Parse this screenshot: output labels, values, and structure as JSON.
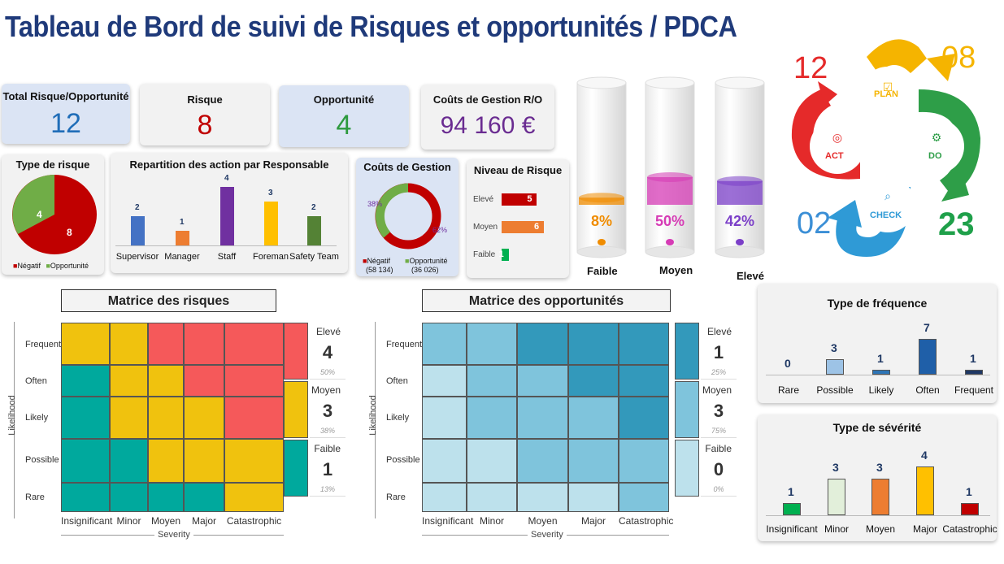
{
  "title": "Tableau de Bord de suivi de Risques et opportunités / PDCA",
  "kpis": {
    "total": {
      "label": "Total Risque/Opportunité",
      "value": "12",
      "color": "#1f6db8"
    },
    "risque": {
      "label": "Risque",
      "value": "8",
      "color": "#c00000"
    },
    "opportunite": {
      "label": "Opportunité",
      "value": "4",
      "color": "#2e9a3e"
    },
    "couts": {
      "label": "Coûts de Gestion R/O",
      "value": "94 160 €",
      "color": "#6a2c91"
    }
  },
  "type_risque": {
    "title": "Type de risque",
    "values": [
      {
        "name": "Négatif",
        "value": 8,
        "color": "#c00000"
      },
      {
        "name": "Opportunité",
        "value": 4,
        "color": "#70ad47"
      }
    ]
  },
  "repartition": {
    "title": "Repartition des action par Responsable",
    "categories": [
      "Supervisor",
      "Manager",
      "Staff",
      "Foreman",
      "Safety Team"
    ],
    "values": [
      2,
      1,
      4,
      3,
      2
    ],
    "colors": [
      "#4472c4",
      "#ed7d31",
      "#7030a0",
      "#ffc000",
      "#548235"
    ]
  },
  "couts_gestion": {
    "title": "Coûts de Gestion",
    "values": [
      {
        "name": "Négatif",
        "amount": "(58 134)",
        "pct": "62%",
        "color": "#c00000",
        "share": 0.62
      },
      {
        "name": "Opportunité",
        "amount": "(36 026)",
        "pct": "38%",
        "color": "#70ad47",
        "share": 0.38
      }
    ]
  },
  "niveau": {
    "title": "Niveau de Risque",
    "rows": [
      {
        "name": "Elevé",
        "value": "5",
        "color": "#c00000",
        "v": 5
      },
      {
        "name": "Moyen",
        "value": "6",
        "color": "#ed7d31",
        "v": 6
      },
      {
        "name": "Faible",
        "value": "1",
        "color": "#00b050",
        "v": 1
      }
    ]
  },
  "cylinders": [
    {
      "pct": "8%",
      "label": "Faible",
      "color": "#f08c00",
      "level": 0.08
    },
    {
      "pct": "50%",
      "label": "Moyen",
      "color": "#d63bb5",
      "level": 0.5
    },
    {
      "pct": "42%",
      "label": "Elevé",
      "color": "#7b3fc8",
      "level": 0.42
    }
  ],
  "pdca": {
    "plan": "PLAN",
    "do": "DO",
    "check": "CHECK",
    "act": "ACT",
    "n_plan": "08",
    "n_do": "23",
    "n_check": "02",
    "n_act": "12"
  },
  "matrice_risques": {
    "title": "Matrice des risques",
    "likelihood": [
      "Frequent",
      "Often",
      "Likely",
      "Possible",
      "Rare"
    ],
    "severity": [
      "Insignificant",
      "Minor",
      "Moyen",
      "Major",
      "Catastrophic"
    ],
    "ylabel": "Likelihood",
    "xlabel": "Severity",
    "side": [
      {
        "name": "Elevé",
        "value": "4",
        "pct": "50%"
      },
      {
        "name": "Moyen",
        "value": "3",
        "pct": "38%"
      },
      {
        "name": "Faible",
        "value": "1",
        "pct": "13%"
      }
    ]
  },
  "matrice_opportunites": {
    "title": "Matrice des opportunités",
    "likelihood": [
      "Frequent",
      "Often",
      "Likely",
      "Possible",
      "Rare"
    ],
    "severity": [
      "Insignificant",
      "Minor",
      "Moyen",
      "Major",
      "Catastrophic"
    ],
    "ylabel": "Likelihood",
    "xlabel": "Severity",
    "side": [
      {
        "name": "Elevé",
        "value": "1",
        "pct": "25%"
      },
      {
        "name": "Moyen",
        "value": "3",
        "pct": "75%"
      },
      {
        "name": "Faible",
        "value": "0",
        "pct": "0%"
      }
    ]
  },
  "chart_data": [
    {
      "type": "bar",
      "title": "Type de fréquence",
      "categories": [
        "Rare",
        "Possible",
        "Likely",
        "Often",
        "Frequent"
      ],
      "values": [
        0,
        3,
        1,
        7,
        1
      ],
      "colors": [
        "#7da7d9",
        "#9dc3e6",
        "#2e75b6",
        "#1f5fa8",
        "#1f3864"
      ]
    },
    {
      "type": "bar",
      "title": "Type de sévérité",
      "categories": [
        "Insignificant",
        "Minor",
        "Moyen",
        "Major",
        "Catastrophic"
      ],
      "values": [
        1,
        3,
        3,
        4,
        1
      ],
      "colors": [
        "#00b050",
        "#e2efda",
        "#ed7d31",
        "#ffc000",
        "#c00000"
      ]
    }
  ]
}
